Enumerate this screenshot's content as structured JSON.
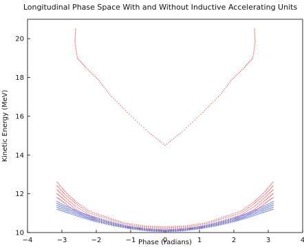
{
  "chart_data": {
    "type": "scatter",
    "title": "Longitudinal Phase Space With and Without Inductive Accelerating Units",
    "xlabel": "Phase (radians)",
    "ylabel": "Kinetic Energy (MeV)",
    "xlim": [
      -4,
      4
    ],
    "ylim": [
      10,
      21
    ],
    "xticks": [
      "−4",
      "−3",
      "−2",
      "−1",
      "0",
      "1",
      "2",
      "3",
      "4"
    ],
    "yticks": [
      "10",
      "12",
      "14",
      "16",
      "18",
      "20"
    ],
    "grid": false,
    "legend": "none",
    "series": [
      {
        "color": "#e8494b",
        "marker": "dot",
        "trajectories": [
          {
            "x": [
              -2.6,
              -2.62,
              -2.55,
              -2.3,
              -1.95,
              -1.6,
              -1.1,
              -0.5,
              0.0,
              0.5,
              1.1,
              1.6,
              1.95,
              2.3,
              2.55,
              2.62,
              2.6
            ],
            "y": [
              20.5,
              19.8,
              19.0,
              18.5,
              17.9,
              17.1,
              16.2,
              15.2,
              14.5,
              15.2,
              16.2,
              17.1,
              17.9,
              18.5,
              19.0,
              19.8,
              20.5
            ],
            "hidden_note": ""
          },
          {
            "x": [
              -3.14,
              -2.9,
              -2.6,
              -2.2,
              -1.7,
              -1.2,
              -0.6,
              0.0,
              0.6,
              1.2,
              1.7,
              2.2,
              2.6,
              2.9,
              3.14
            ],
            "y": [
              12.6,
              12.1,
              11.6,
              11.1,
              10.8,
              10.5,
              10.35,
              10.3,
              10.35,
              10.5,
              10.8,
              11.1,
              11.6,
              12.1,
              12.6
            ]
          },
          {
            "x": [
              -3.14,
              -2.9,
              -2.6,
              -2.2,
              -1.7,
              -1.2,
              -0.6,
              0.0,
              0.6,
              1.2,
              1.7,
              2.2,
              2.6,
              2.9,
              3.14
            ],
            "y": [
              12.4,
              11.95,
              11.5,
              11.0,
              10.72,
              10.45,
              10.3,
              10.25,
              10.3,
              10.45,
              10.72,
              11.0,
              11.5,
              11.95,
              12.4
            ]
          },
          {
            "x": [
              -3.14,
              -2.9,
              -2.6,
              -2.2,
              -1.7,
              -1.2,
              -0.6,
              0.0,
              0.6,
              1.2,
              1.7,
              2.2,
              2.6,
              2.9,
              3.14
            ],
            "y": [
              12.2,
              11.8,
              11.35,
              10.9,
              10.62,
              10.38,
              10.25,
              10.2,
              10.25,
              10.38,
              10.62,
              10.9,
              11.35,
              11.8,
              12.2
            ]
          },
          {
            "x": [
              -3.14,
              -2.9,
              -2.6,
              -2.2,
              -1.7,
              -1.2,
              -0.6,
              0.0,
              0.6,
              1.2,
              1.7,
              2.2,
              2.6,
              2.9,
              3.14
            ],
            "y": [
              12.0,
              11.65,
              11.2,
              10.82,
              10.55,
              10.32,
              10.2,
              10.15,
              10.2,
              10.32,
              10.55,
              10.82,
              11.2,
              11.65,
              12.0
            ]
          },
          {
            "x": [
              -3.14,
              -2.9,
              -2.6,
              -2.2,
              -1.7,
              -1.2,
              -0.6,
              0.0,
              0.6,
              1.2,
              1.7,
              2.2,
              2.6,
              2.9,
              3.14
            ],
            "y": [
              11.8,
              11.5,
              11.08,
              10.72,
              10.48,
              10.27,
              10.15,
              10.1,
              10.15,
              10.27,
              10.48,
              10.72,
              11.08,
              11.5,
              11.8
            ]
          }
        ]
      },
      {
        "color": "#2e4fe0",
        "marker": "dot",
        "trajectories": [
          {
            "x": [
              -3.14,
              -2.8,
              -2.4,
              -2.0,
              -1.5,
              -1.0,
              -0.5,
              0.0,
              0.5,
              1.0,
              1.5,
              2.0,
              2.4,
              2.8,
              3.14
            ],
            "y": [
              11.6,
              11.3,
              11.0,
              10.75,
              10.5,
              10.3,
              10.18,
              10.12,
              10.18,
              10.3,
              10.5,
              10.75,
              11.0,
              11.3,
              11.6
            ]
          },
          {
            "x": [
              -3.14,
              -2.8,
              -2.4,
              -2.0,
              -1.5,
              -1.0,
              -0.5,
              0.0,
              0.5,
              1.0,
              1.5,
              2.0,
              2.4,
              2.8,
              3.14
            ],
            "y": [
              11.5,
              11.22,
              10.95,
              10.7,
              10.46,
              10.27,
              10.15,
              10.1,
              10.15,
              10.27,
              10.46,
              10.7,
              10.95,
              11.22,
              11.5
            ]
          },
          {
            "x": [
              -3.14,
              -2.8,
              -2.4,
              -2.0,
              -1.5,
              -1.0,
              -0.5,
              0.0,
              0.5,
              1.0,
              1.5,
              2.0,
              2.4,
              2.8,
              3.14
            ],
            "y": [
              11.4,
              11.15,
              10.88,
              10.65,
              10.42,
              10.24,
              10.13,
              10.08,
              10.13,
              10.24,
              10.42,
              10.65,
              10.88,
              11.15,
              11.4
            ]
          },
          {
            "x": [
              -3.14,
              -2.8,
              -2.4,
              -2.0,
              -1.5,
              -1.0,
              -0.5,
              0.0,
              0.5,
              1.0,
              1.5,
              2.0,
              2.4,
              2.8,
              3.14
            ],
            "y": [
              11.3,
              11.08,
              10.82,
              10.6,
              10.38,
              10.21,
              10.1,
              10.06,
              10.1,
              10.21,
              10.38,
              10.6,
              10.82,
              11.08,
              11.3
            ]
          },
          {
            "x": [
              -3.14,
              -2.8,
              -2.4,
              -2.0,
              -1.5,
              -1.0,
              -0.5,
              0.0,
              0.5,
              1.0,
              1.5,
              2.0,
              2.4,
              2.8,
              3.14
            ],
            "y": [
              11.2,
              11.0,
              10.76,
              10.55,
              10.35,
              10.19,
              10.08,
              10.04,
              10.08,
              10.19,
              10.35,
              10.55,
              10.76,
              11.0,
              11.2
            ]
          }
        ]
      }
    ]
  }
}
